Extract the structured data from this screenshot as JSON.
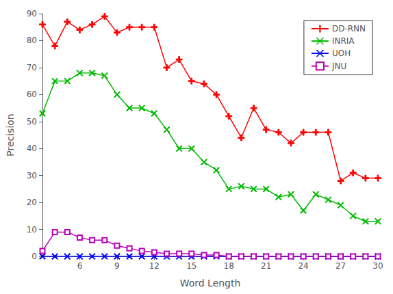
{
  "chart_data": {
    "type": "line",
    "xlabel": "Word Length",
    "ylabel": "Precision",
    "x": [
      3,
      4,
      5,
      6,
      7,
      8,
      9,
      10,
      11,
      12,
      13,
      14,
      15,
      16,
      17,
      18,
      19,
      20,
      21,
      22,
      23,
      24,
      25,
      26,
      27,
      28,
      29,
      30
    ],
    "xlim": [
      3,
      30
    ],
    "ylim": [
      0,
      90
    ],
    "xticks": [
      6,
      9,
      12,
      15,
      18,
      21,
      24,
      27,
      30
    ],
    "yticks": [
      0,
      10,
      20,
      30,
      40,
      50,
      60,
      70,
      80,
      90
    ],
    "series": [
      {
        "name": "DD-RNN",
        "color": "#ff0000",
        "marker": "plus",
        "values": [
          86,
          78,
          87,
          84,
          86,
          89,
          83,
          85,
          85,
          85,
          70,
          73,
          65,
          64,
          60,
          52,
          44,
          55,
          47,
          46,
          42,
          46,
          46,
          46,
          28,
          31,
          29,
          29
        ]
      },
      {
        "name": "INRIA",
        "color": "#00bb00",
        "marker": "x",
        "values": [
          53,
          65,
          65,
          68,
          68,
          67,
          60,
          55,
          55,
          53,
          47,
          40,
          40,
          35,
          32,
          25,
          26,
          25,
          25,
          22,
          23,
          17,
          23,
          21,
          19,
          15,
          13,
          13
        ]
      },
      {
        "name": "UOH",
        "color": "#0000ff",
        "marker": "x",
        "values": [
          0,
          0,
          0,
          0,
          0,
          0,
          0,
          0,
          0,
          0,
          0,
          0,
          0,
          0,
          0,
          0,
          0,
          0,
          0,
          0,
          0,
          0,
          0,
          0,
          0,
          0,
          0,
          0
        ]
      },
      {
        "name": "JNU",
        "color": "#bb00bb",
        "marker": "square",
        "values": [
          2,
          9,
          9,
          7,
          6,
          6,
          4,
          3,
          2,
          1.5,
          1,
          1,
          1,
          0.5,
          0.5,
          0,
          0,
          0,
          0,
          0,
          0,
          0,
          0,
          0,
          0,
          0,
          0,
          0
        ]
      }
    ],
    "grid": false,
    "legend": "upper right"
  }
}
